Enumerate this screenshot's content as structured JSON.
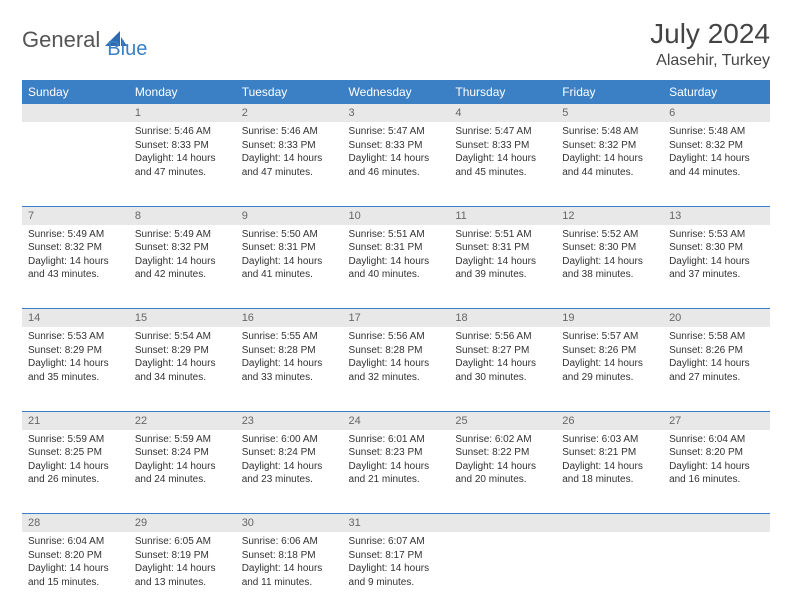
{
  "brand": {
    "part1": "General",
    "part2": "Blue"
  },
  "title": "July 2024",
  "location": "Alasehir, Turkey",
  "colors": {
    "header_bg": "#3b7fc4",
    "header_text": "#ffffff",
    "daynum_bg": "#e8e8e8",
    "daynum_text": "#666666",
    "body_text": "#333333",
    "divider": "#3b7fc4"
  },
  "weekdays": [
    "Sunday",
    "Monday",
    "Tuesday",
    "Wednesday",
    "Thursday",
    "Friday",
    "Saturday"
  ],
  "weeks": [
    {
      "days": [
        null,
        {
          "n": "1",
          "sr": "Sunrise: 5:46 AM",
          "ss": "Sunset: 8:33 PM",
          "d1": "Daylight: 14 hours",
          "d2": "and 47 minutes."
        },
        {
          "n": "2",
          "sr": "Sunrise: 5:46 AM",
          "ss": "Sunset: 8:33 PM",
          "d1": "Daylight: 14 hours",
          "d2": "and 47 minutes."
        },
        {
          "n": "3",
          "sr": "Sunrise: 5:47 AM",
          "ss": "Sunset: 8:33 PM",
          "d1": "Daylight: 14 hours",
          "d2": "and 46 minutes."
        },
        {
          "n": "4",
          "sr": "Sunrise: 5:47 AM",
          "ss": "Sunset: 8:33 PM",
          "d1": "Daylight: 14 hours",
          "d2": "and 45 minutes."
        },
        {
          "n": "5",
          "sr": "Sunrise: 5:48 AM",
          "ss": "Sunset: 8:32 PM",
          "d1": "Daylight: 14 hours",
          "d2": "and 44 minutes."
        },
        {
          "n": "6",
          "sr": "Sunrise: 5:48 AM",
          "ss": "Sunset: 8:32 PM",
          "d1": "Daylight: 14 hours",
          "d2": "and 44 minutes."
        }
      ]
    },
    {
      "days": [
        {
          "n": "7",
          "sr": "Sunrise: 5:49 AM",
          "ss": "Sunset: 8:32 PM",
          "d1": "Daylight: 14 hours",
          "d2": "and 43 minutes."
        },
        {
          "n": "8",
          "sr": "Sunrise: 5:49 AM",
          "ss": "Sunset: 8:32 PM",
          "d1": "Daylight: 14 hours",
          "d2": "and 42 minutes."
        },
        {
          "n": "9",
          "sr": "Sunrise: 5:50 AM",
          "ss": "Sunset: 8:31 PM",
          "d1": "Daylight: 14 hours",
          "d2": "and 41 minutes."
        },
        {
          "n": "10",
          "sr": "Sunrise: 5:51 AM",
          "ss": "Sunset: 8:31 PM",
          "d1": "Daylight: 14 hours",
          "d2": "and 40 minutes."
        },
        {
          "n": "11",
          "sr": "Sunrise: 5:51 AM",
          "ss": "Sunset: 8:31 PM",
          "d1": "Daylight: 14 hours",
          "d2": "and 39 minutes."
        },
        {
          "n": "12",
          "sr": "Sunrise: 5:52 AM",
          "ss": "Sunset: 8:30 PM",
          "d1": "Daylight: 14 hours",
          "d2": "and 38 minutes."
        },
        {
          "n": "13",
          "sr": "Sunrise: 5:53 AM",
          "ss": "Sunset: 8:30 PM",
          "d1": "Daylight: 14 hours",
          "d2": "and 37 minutes."
        }
      ]
    },
    {
      "days": [
        {
          "n": "14",
          "sr": "Sunrise: 5:53 AM",
          "ss": "Sunset: 8:29 PM",
          "d1": "Daylight: 14 hours",
          "d2": "and 35 minutes."
        },
        {
          "n": "15",
          "sr": "Sunrise: 5:54 AM",
          "ss": "Sunset: 8:29 PM",
          "d1": "Daylight: 14 hours",
          "d2": "and 34 minutes."
        },
        {
          "n": "16",
          "sr": "Sunrise: 5:55 AM",
          "ss": "Sunset: 8:28 PM",
          "d1": "Daylight: 14 hours",
          "d2": "and 33 minutes."
        },
        {
          "n": "17",
          "sr": "Sunrise: 5:56 AM",
          "ss": "Sunset: 8:28 PM",
          "d1": "Daylight: 14 hours",
          "d2": "and 32 minutes."
        },
        {
          "n": "18",
          "sr": "Sunrise: 5:56 AM",
          "ss": "Sunset: 8:27 PM",
          "d1": "Daylight: 14 hours",
          "d2": "and 30 minutes."
        },
        {
          "n": "19",
          "sr": "Sunrise: 5:57 AM",
          "ss": "Sunset: 8:26 PM",
          "d1": "Daylight: 14 hours",
          "d2": "and 29 minutes."
        },
        {
          "n": "20",
          "sr": "Sunrise: 5:58 AM",
          "ss": "Sunset: 8:26 PM",
          "d1": "Daylight: 14 hours",
          "d2": "and 27 minutes."
        }
      ]
    },
    {
      "days": [
        {
          "n": "21",
          "sr": "Sunrise: 5:59 AM",
          "ss": "Sunset: 8:25 PM",
          "d1": "Daylight: 14 hours",
          "d2": "and 26 minutes."
        },
        {
          "n": "22",
          "sr": "Sunrise: 5:59 AM",
          "ss": "Sunset: 8:24 PM",
          "d1": "Daylight: 14 hours",
          "d2": "and 24 minutes."
        },
        {
          "n": "23",
          "sr": "Sunrise: 6:00 AM",
          "ss": "Sunset: 8:24 PM",
          "d1": "Daylight: 14 hours",
          "d2": "and 23 minutes."
        },
        {
          "n": "24",
          "sr": "Sunrise: 6:01 AM",
          "ss": "Sunset: 8:23 PM",
          "d1": "Daylight: 14 hours",
          "d2": "and 21 minutes."
        },
        {
          "n": "25",
          "sr": "Sunrise: 6:02 AM",
          "ss": "Sunset: 8:22 PM",
          "d1": "Daylight: 14 hours",
          "d2": "and 20 minutes."
        },
        {
          "n": "26",
          "sr": "Sunrise: 6:03 AM",
          "ss": "Sunset: 8:21 PM",
          "d1": "Daylight: 14 hours",
          "d2": "and 18 minutes."
        },
        {
          "n": "27",
          "sr": "Sunrise: 6:04 AM",
          "ss": "Sunset: 8:20 PM",
          "d1": "Daylight: 14 hours",
          "d2": "and 16 minutes."
        }
      ]
    },
    {
      "days": [
        {
          "n": "28",
          "sr": "Sunrise: 6:04 AM",
          "ss": "Sunset: 8:20 PM",
          "d1": "Daylight: 14 hours",
          "d2": "and 15 minutes."
        },
        {
          "n": "29",
          "sr": "Sunrise: 6:05 AM",
          "ss": "Sunset: 8:19 PM",
          "d1": "Daylight: 14 hours",
          "d2": "and 13 minutes."
        },
        {
          "n": "30",
          "sr": "Sunrise: 6:06 AM",
          "ss": "Sunset: 8:18 PM",
          "d1": "Daylight: 14 hours",
          "d2": "and 11 minutes."
        },
        {
          "n": "31",
          "sr": "Sunrise: 6:07 AM",
          "ss": "Sunset: 8:17 PM",
          "d1": "Daylight: 14 hours",
          "d2": "and 9 minutes."
        },
        null,
        null,
        null
      ]
    }
  ]
}
